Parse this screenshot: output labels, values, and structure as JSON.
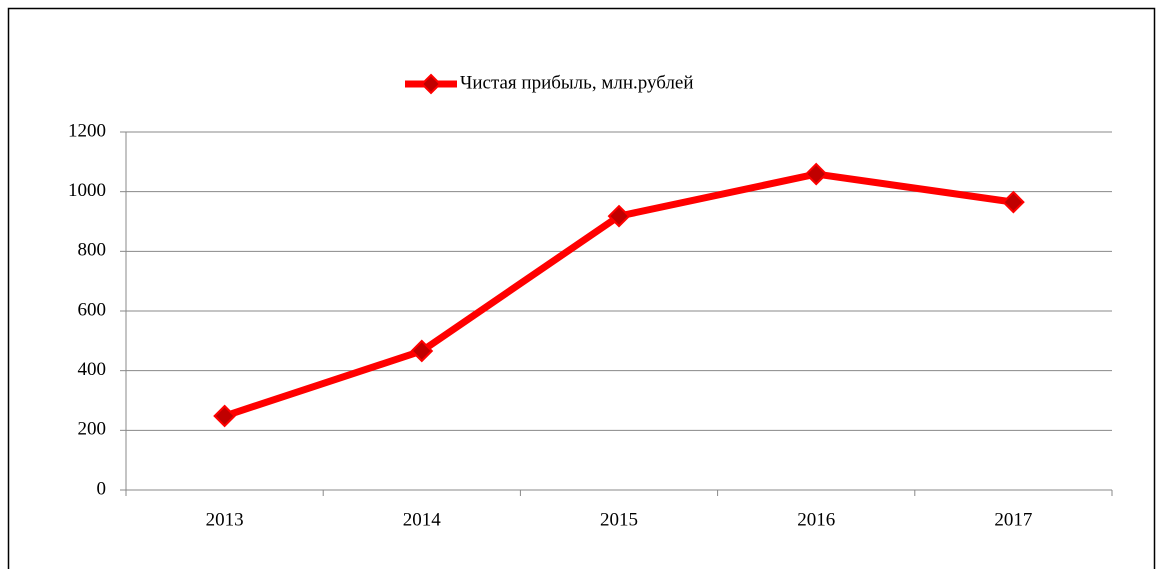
{
  "chart_data": {
    "type": "line",
    "categories": [
      "2013",
      "2014",
      "2015",
      "2016",
      "2017"
    ],
    "series": [
      {
        "name": "Чистая прибыль, млн.рублей",
        "color": "#ff0000",
        "marker_color": "#c00000",
        "values": [
          248,
          466,
          918,
          1059,
          965
        ]
      }
    ],
    "ylim": [
      0,
      1200
    ],
    "yticks": [
      0,
      200,
      400,
      600,
      800,
      1000,
      1200
    ],
    "grid": true,
    "legend": "top"
  }
}
